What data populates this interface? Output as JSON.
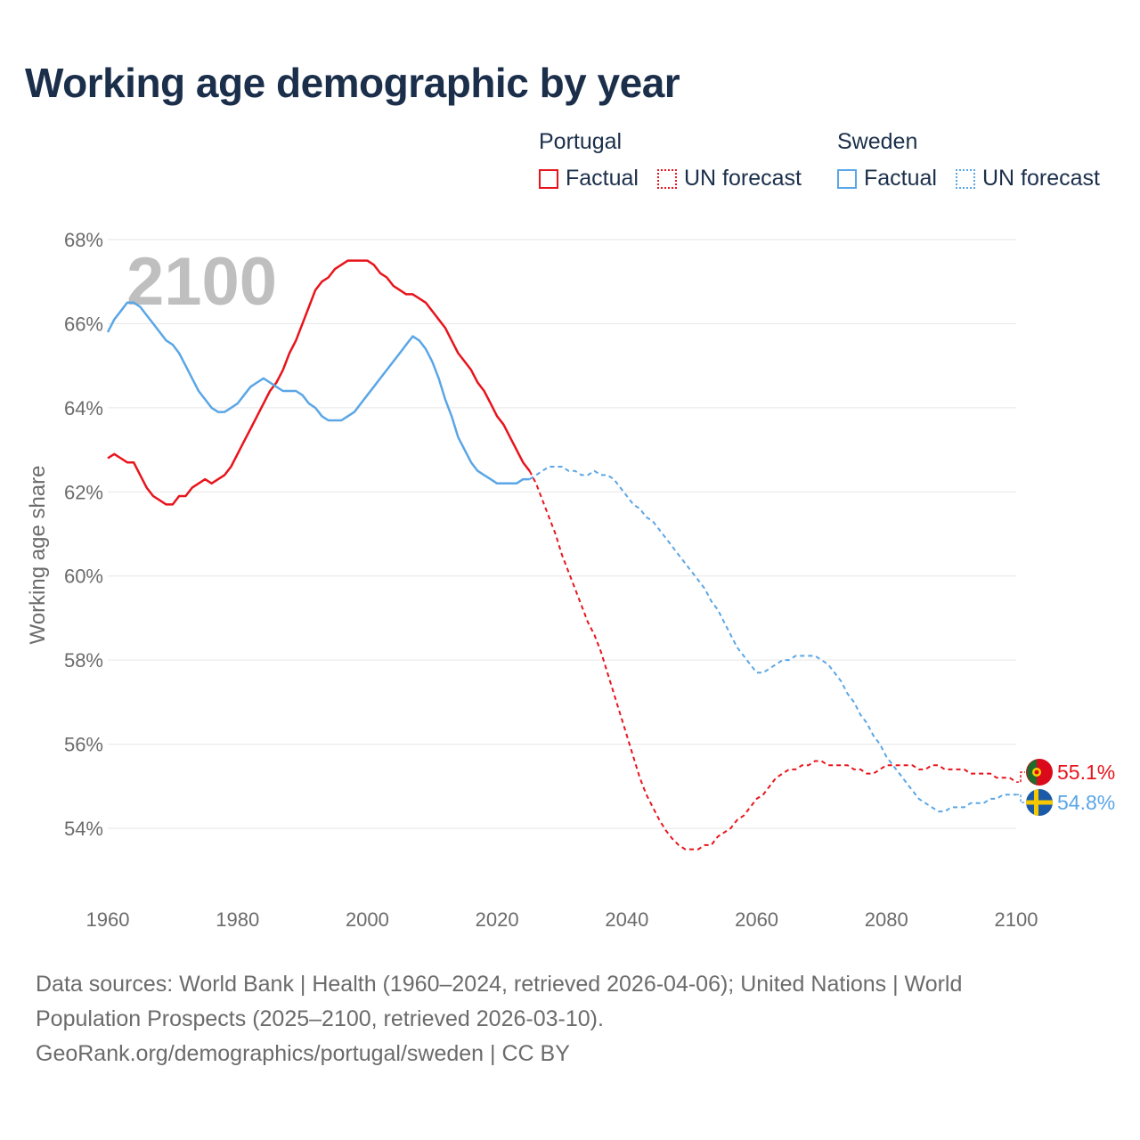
{
  "title": "Working age demographic by year",
  "legend": {
    "groups": [
      {
        "name": "Portugal",
        "items": [
          "Factual",
          "UN forecast"
        ]
      },
      {
        "name": "Sweden",
        "items": [
          "Factual",
          "UN forecast"
        ]
      }
    ]
  },
  "colors": {
    "portugal": "#e8141c",
    "sweden": "#5aa6e6",
    "grid": "#e6e6e6",
    "axis_text": "#6b6b6b",
    "watermark": "#bfbfbf"
  },
  "footer": {
    "line1": "Data sources: World Bank | Health (1960–2024, retrieved 2026-04-06); United Nations | World",
    "line2": "Population Prospects (2025–2100, retrieved 2026-03-10).",
    "line3": "GeoRank.org/demographics/portugal/sweden | CC BY"
  },
  "chart_data": {
    "type": "line",
    "title": "Working age demographic by year",
    "year_watermark": "2100",
    "xlabel": "",
    "ylabel": "Working age share",
    "xlim": [
      1960,
      2100
    ],
    "ylim": [
      52.5,
      68
    ],
    "x_ticks": [
      1960,
      1980,
      2000,
      2020,
      2040,
      2060,
      2080,
      2100
    ],
    "y_ticks": [
      54,
      56,
      58,
      60,
      62,
      64,
      66,
      68
    ],
    "y_tick_labels": [
      "54%",
      "56%",
      "58%",
      "60%",
      "62%",
      "64%",
      "66%",
      "68%"
    ],
    "x_tick_labels": [
      "1960",
      "1980",
      "2000",
      "2020",
      "2040",
      "2060",
      "2080",
      "2100"
    ],
    "grid": true,
    "series": [
      {
        "name": "Portugal",
        "end_label": "55.1%",
        "factual": [
          [
            1960,
            62.8
          ],
          [
            1961,
            62.9
          ],
          [
            1962,
            62.8
          ],
          [
            1963,
            62.7
          ],
          [
            1964,
            62.7
          ],
          [
            1965,
            62.4
          ],
          [
            1966,
            62.1
          ],
          [
            1967,
            61.9
          ],
          [
            1968,
            61.8
          ],
          [
            1969,
            61.7
          ],
          [
            1970,
            61.7
          ],
          [
            1971,
            61.9
          ],
          [
            1972,
            61.9
          ],
          [
            1973,
            62.1
          ],
          [
            1974,
            62.2
          ],
          [
            1975,
            62.3
          ],
          [
            1976,
            62.2
          ],
          [
            1977,
            62.3
          ],
          [
            1978,
            62.4
          ],
          [
            1979,
            62.6
          ],
          [
            1980,
            62.9
          ],
          [
            1981,
            63.2
          ],
          [
            1982,
            63.5
          ],
          [
            1983,
            63.8
          ],
          [
            1984,
            64.1
          ],
          [
            1985,
            64.4
          ],
          [
            1986,
            64.6
          ],
          [
            1987,
            64.9
          ],
          [
            1988,
            65.3
          ],
          [
            1989,
            65.6
          ],
          [
            1990,
            66.0
          ],
          [
            1991,
            66.4
          ],
          [
            1992,
            66.8
          ],
          [
            1993,
            67.0
          ],
          [
            1994,
            67.1
          ],
          [
            1995,
            67.3
          ],
          [
            1996,
            67.4
          ],
          [
            1997,
            67.5
          ],
          [
            1998,
            67.5
          ],
          [
            1999,
            67.5
          ],
          [
            2000,
            67.5
          ],
          [
            2001,
            67.4
          ],
          [
            2002,
            67.2
          ],
          [
            2003,
            67.1
          ],
          [
            2004,
            66.9
          ],
          [
            2005,
            66.8
          ],
          [
            2006,
            66.7
          ],
          [
            2007,
            66.7
          ],
          [
            2008,
            66.6
          ],
          [
            2009,
            66.5
          ],
          [
            2010,
            66.3
          ],
          [
            2011,
            66.1
          ],
          [
            2012,
            65.9
          ],
          [
            2013,
            65.6
          ],
          [
            2014,
            65.3
          ],
          [
            2015,
            65.1
          ],
          [
            2016,
            64.9
          ],
          [
            2017,
            64.6
          ],
          [
            2018,
            64.4
          ],
          [
            2019,
            64.1
          ],
          [
            2020,
            63.8
          ],
          [
            2021,
            63.6
          ],
          [
            2022,
            63.3
          ],
          [
            2023,
            63.0
          ],
          [
            2024,
            62.7
          ],
          [
            2025,
            62.5
          ]
        ],
        "forecast": [
          [
            2025,
            62.5
          ],
          [
            2026,
            62.2
          ],
          [
            2027,
            61.8
          ],
          [
            2028,
            61.4
          ],
          [
            2029,
            61.0
          ],
          [
            2030,
            60.5
          ],
          [
            2031,
            60.1
          ],
          [
            2032,
            59.7
          ],
          [
            2033,
            59.3
          ],
          [
            2034,
            58.9
          ],
          [
            2035,
            58.6
          ],
          [
            2036,
            58.2
          ],
          [
            2037,
            57.7
          ],
          [
            2038,
            57.2
          ],
          [
            2039,
            56.7
          ],
          [
            2040,
            56.2
          ],
          [
            2041,
            55.7
          ],
          [
            2042,
            55.2
          ],
          [
            2043,
            54.8
          ],
          [
            2044,
            54.5
          ],
          [
            2045,
            54.2
          ],
          [
            2046,
            53.95
          ],
          [
            2047,
            53.75
          ],
          [
            2048,
            53.6
          ],
          [
            2049,
            53.5
          ],
          [
            2050,
            53.5
          ],
          [
            2051,
            53.5
          ],
          [
            2052,
            53.6
          ],
          [
            2053,
            53.6
          ],
          [
            2054,
            53.8
          ],
          [
            2055,
            53.9
          ],
          [
            2056,
            54.0
          ],
          [
            2057,
            54.2
          ],
          [
            2058,
            54.3
          ],
          [
            2059,
            54.5
          ],
          [
            2060,
            54.7
          ],
          [
            2061,
            54.8
          ],
          [
            2062,
            55.0
          ],
          [
            2063,
            55.2
          ],
          [
            2064,
            55.3
          ],
          [
            2065,
            55.4
          ],
          [
            2066,
            55.4
          ],
          [
            2067,
            55.5
          ],
          [
            2068,
            55.5
          ],
          [
            2069,
            55.6
          ],
          [
            2070,
            55.6
          ],
          [
            2071,
            55.5
          ],
          [
            2072,
            55.5
          ],
          [
            2073,
            55.5
          ],
          [
            2074,
            55.5
          ],
          [
            2075,
            55.4
          ],
          [
            2076,
            55.4
          ],
          [
            2077,
            55.3
          ],
          [
            2078,
            55.3
          ],
          [
            2079,
            55.4
          ],
          [
            2080,
            55.5
          ],
          [
            2081,
            55.5
          ],
          [
            2082,
            55.5
          ],
          [
            2083,
            55.5
          ],
          [
            2084,
            55.5
          ],
          [
            2085,
            55.4
          ],
          [
            2086,
            55.4
          ],
          [
            2087,
            55.5
          ],
          [
            2088,
            55.5
          ],
          [
            2089,
            55.4
          ],
          [
            2090,
            55.4
          ],
          [
            2091,
            55.4
          ],
          [
            2092,
            55.4
          ],
          [
            2093,
            55.3
          ],
          [
            2094,
            55.3
          ],
          [
            2095,
            55.3
          ],
          [
            2096,
            55.3
          ],
          [
            2097,
            55.2
          ],
          [
            2098,
            55.2
          ],
          [
            2099,
            55.2
          ],
          [
            2100,
            55.1
          ]
        ]
      },
      {
        "name": "Sweden",
        "end_label": "54.8%",
        "factual": [
          [
            1960,
            65.8
          ],
          [
            1961,
            66.1
          ],
          [
            1962,
            66.3
          ],
          [
            1963,
            66.5
          ],
          [
            1964,
            66.5
          ],
          [
            1965,
            66.4
          ],
          [
            1966,
            66.2
          ],
          [
            1967,
            66.0
          ],
          [
            1968,
            65.8
          ],
          [
            1969,
            65.6
          ],
          [
            1970,
            65.5
          ],
          [
            1971,
            65.3
          ],
          [
            1972,
            65.0
          ],
          [
            1973,
            64.7
          ],
          [
            1974,
            64.4
          ],
          [
            1975,
            64.2
          ],
          [
            1976,
            64.0
          ],
          [
            1977,
            63.9
          ],
          [
            1978,
            63.9
          ],
          [
            1979,
            64.0
          ],
          [
            1980,
            64.1
          ],
          [
            1981,
            64.3
          ],
          [
            1982,
            64.5
          ],
          [
            1983,
            64.6
          ],
          [
            1984,
            64.7
          ],
          [
            1985,
            64.6
          ],
          [
            1986,
            64.5
          ],
          [
            1987,
            64.4
          ],
          [
            1988,
            64.4
          ],
          [
            1989,
            64.4
          ],
          [
            1990,
            64.3
          ],
          [
            1991,
            64.1
          ],
          [
            1992,
            64.0
          ],
          [
            1993,
            63.8
          ],
          [
            1994,
            63.7
          ],
          [
            1995,
            63.7
          ],
          [
            1996,
            63.7
          ],
          [
            1997,
            63.8
          ],
          [
            1998,
            63.9
          ],
          [
            1999,
            64.1
          ],
          [
            2000,
            64.3
          ],
          [
            2001,
            64.5
          ],
          [
            2002,
            64.7
          ],
          [
            2003,
            64.9
          ],
          [
            2004,
            65.1
          ],
          [
            2005,
            65.3
          ],
          [
            2006,
            65.5
          ],
          [
            2007,
            65.7
          ],
          [
            2008,
            65.6
          ],
          [
            2009,
            65.4
          ],
          [
            2010,
            65.1
          ],
          [
            2011,
            64.7
          ],
          [
            2012,
            64.2
          ],
          [
            2013,
            63.8
          ],
          [
            2014,
            63.3
          ],
          [
            2015,
            63.0
          ],
          [
            2016,
            62.7
          ],
          [
            2017,
            62.5
          ],
          [
            2018,
            62.4
          ],
          [
            2019,
            62.3
          ],
          [
            2020,
            62.2
          ],
          [
            2021,
            62.2
          ],
          [
            2022,
            62.2
          ],
          [
            2023,
            62.2
          ],
          [
            2024,
            62.3
          ],
          [
            2025,
            62.3
          ]
        ],
        "forecast": [
          [
            2025,
            62.3
          ],
          [
            2026,
            62.4
          ],
          [
            2027,
            62.5
          ],
          [
            2028,
            62.6
          ],
          [
            2029,
            62.6
          ],
          [
            2030,
            62.6
          ],
          [
            2031,
            62.5
          ],
          [
            2032,
            62.5
          ],
          [
            2033,
            62.4
          ],
          [
            2034,
            62.4
          ],
          [
            2035,
            62.5
          ],
          [
            2036,
            62.4
          ],
          [
            2037,
            62.4
          ],
          [
            2038,
            62.3
          ],
          [
            2039,
            62.1
          ],
          [
            2040,
            61.9
          ],
          [
            2041,
            61.7
          ],
          [
            2042,
            61.6
          ],
          [
            2043,
            61.4
          ],
          [
            2044,
            61.3
          ],
          [
            2045,
            61.1
          ],
          [
            2046,
            60.9
          ],
          [
            2047,
            60.7
          ],
          [
            2048,
            60.5
          ],
          [
            2049,
            60.3
          ],
          [
            2050,
            60.1
          ],
          [
            2051,
            59.9
          ],
          [
            2052,
            59.7
          ],
          [
            2053,
            59.4
          ],
          [
            2054,
            59.2
          ],
          [
            2055,
            58.9
          ],
          [
            2056,
            58.6
          ],
          [
            2057,
            58.3
          ],
          [
            2058,
            58.1
          ],
          [
            2059,
            57.9
          ],
          [
            2060,
            57.7
          ],
          [
            2061,
            57.7
          ],
          [
            2062,
            57.8
          ],
          [
            2063,
            57.9
          ],
          [
            2064,
            58.0
          ],
          [
            2065,
            58.0
          ],
          [
            2066,
            58.1
          ],
          [
            2067,
            58.1
          ],
          [
            2068,
            58.1
          ],
          [
            2069,
            58.1
          ],
          [
            2070,
            58.0
          ],
          [
            2071,
            57.9
          ],
          [
            2072,
            57.7
          ],
          [
            2073,
            57.5
          ],
          [
            2074,
            57.2
          ],
          [
            2075,
            57.0
          ],
          [
            2076,
            56.7
          ],
          [
            2077,
            56.5
          ],
          [
            2078,
            56.2
          ],
          [
            2079,
            56.0
          ],
          [
            2080,
            55.7
          ],
          [
            2081,
            55.5
          ],
          [
            2082,
            55.3
          ],
          [
            2083,
            55.1
          ],
          [
            2084,
            54.9
          ],
          [
            2085,
            54.7
          ],
          [
            2086,
            54.6
          ],
          [
            2087,
            54.5
          ],
          [
            2088,
            54.4
          ],
          [
            2089,
            54.4
          ],
          [
            2090,
            54.5
          ],
          [
            2091,
            54.5
          ],
          [
            2092,
            54.5
          ],
          [
            2093,
            54.6
          ],
          [
            2094,
            54.6
          ],
          [
            2095,
            54.6
          ],
          [
            2096,
            54.7
          ],
          [
            2097,
            54.7
          ],
          [
            2098,
            54.8
          ],
          [
            2099,
            54.8
          ],
          [
            2100,
            54.8
          ]
        ]
      }
    ]
  }
}
